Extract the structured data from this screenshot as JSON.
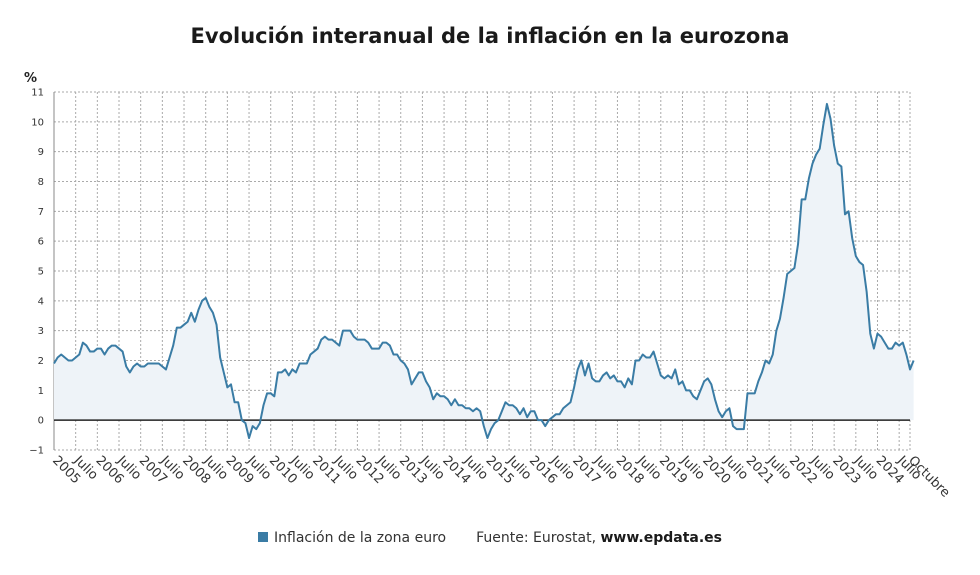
{
  "title": "Evolución interanual de la inflación en la eurozona",
  "legend": {
    "series_label": "Inflación de la zona euro",
    "source_prefix": "Fuente: Eurostat, ",
    "source_site": "www.epdata.es"
  },
  "colors": {
    "line": "#3a7ca5",
    "fill": "#eef3f8",
    "grid": "#aaaaaa",
    "zero": "#222222"
  },
  "chart_data": {
    "type": "area",
    "title": "Evolución interanual de la inflación en la eurozona",
    "ylabel": "%",
    "ylim": [
      -1,
      11
    ],
    "yticks": [
      -1,
      0,
      1,
      2,
      3,
      4,
      5,
      6,
      7,
      8,
      9,
      10,
      11
    ],
    "xlim": [
      2005.0,
      2024.75
    ],
    "grid": true,
    "legend_position": "bottom",
    "x_tick_labels": [
      {
        "x": 2005.0,
        "label": "2005"
      },
      {
        "x": 2005.5,
        "label": "Julio"
      },
      {
        "x": 2006.0,
        "label": "2006"
      },
      {
        "x": 2006.5,
        "label": "Julio"
      },
      {
        "x": 2007.0,
        "label": "2007"
      },
      {
        "x": 2007.5,
        "label": "Julio"
      },
      {
        "x": 2008.0,
        "label": "2008"
      },
      {
        "x": 2008.5,
        "label": "Julio"
      },
      {
        "x": 2009.0,
        "label": "2009"
      },
      {
        "x": 2009.5,
        "label": "Julio"
      },
      {
        "x": 2010.0,
        "label": "2010"
      },
      {
        "x": 2010.5,
        "label": "Julio"
      },
      {
        "x": 2011.0,
        "label": "2011"
      },
      {
        "x": 2011.5,
        "label": "Julio"
      },
      {
        "x": 2012.0,
        "label": "2012"
      },
      {
        "x": 2012.5,
        "label": "Julio"
      },
      {
        "x": 2013.0,
        "label": "2013"
      },
      {
        "x": 2013.5,
        "label": "Julio"
      },
      {
        "x": 2014.0,
        "label": "2014"
      },
      {
        "x": 2014.5,
        "label": "Julio"
      },
      {
        "x": 2015.0,
        "label": "2015"
      },
      {
        "x": 2015.5,
        "label": "Julio"
      },
      {
        "x": 2016.0,
        "label": "2016"
      },
      {
        "x": 2016.5,
        "label": "Julio"
      },
      {
        "x": 2017.0,
        "label": "2017"
      },
      {
        "x": 2017.5,
        "label": "Julio"
      },
      {
        "x": 2018.0,
        "label": "2018"
      },
      {
        "x": 2018.5,
        "label": "Julio"
      },
      {
        "x": 2019.0,
        "label": "2019"
      },
      {
        "x": 2019.5,
        "label": "Julio"
      },
      {
        "x": 2020.0,
        "label": "2020"
      },
      {
        "x": 2020.5,
        "label": "Julio"
      },
      {
        "x": 2021.0,
        "label": "2021"
      },
      {
        "x": 2021.5,
        "label": "Julio"
      },
      {
        "x": 2022.0,
        "label": "2022"
      },
      {
        "x": 2022.5,
        "label": "Julio"
      },
      {
        "x": 2023.0,
        "label": "2023"
      },
      {
        "x": 2023.5,
        "label": "Julio"
      },
      {
        "x": 2024.0,
        "label": "2024"
      },
      {
        "x": 2024.5,
        "label": "Julio"
      },
      {
        "x": 2024.75,
        "label": "Octubre"
      }
    ],
    "series": [
      {
        "name": "Inflación de la zona euro",
        "start": "2005-01",
        "frequency": "monthly",
        "values": [
          1.9,
          2.1,
          2.2,
          2.1,
          2.0,
          2.0,
          2.1,
          2.2,
          2.6,
          2.5,
          2.3,
          2.3,
          2.4,
          2.4,
          2.2,
          2.4,
          2.5,
          2.5,
          2.4,
          2.3,
          1.8,
          1.6,
          1.8,
          1.9,
          1.8,
          1.8,
          1.9,
          1.9,
          1.9,
          1.9,
          1.8,
          1.7,
          2.1,
          2.5,
          3.1,
          3.1,
          3.2,
          3.3,
          3.6,
          3.3,
          3.7,
          4.0,
          4.1,
          3.8,
          3.6,
          3.2,
          2.1,
          1.6,
          1.1,
          1.2,
          0.6,
          0.6,
          0.0,
          -0.1,
          -0.6,
          -0.2,
          -0.3,
          -0.1,
          0.5,
          0.9,
          0.9,
          0.8,
          1.6,
          1.6,
          1.7,
          1.5,
          1.7,
          1.6,
          1.9,
          1.9,
          1.9,
          2.2,
          2.3,
          2.4,
          2.7,
          2.8,
          2.7,
          2.7,
          2.6,
          2.5,
          3.0,
          3.0,
          3.0,
          2.8,
          2.7,
          2.7,
          2.7,
          2.6,
          2.4,
          2.4,
          2.4,
          2.6,
          2.6,
          2.5,
          2.2,
          2.2,
          2.0,
          1.9,
          1.7,
          1.2,
          1.4,
          1.6,
          1.6,
          1.3,
          1.1,
          0.7,
          0.9,
          0.8,
          0.8,
          0.7,
          0.5,
          0.7,
          0.5,
          0.5,
          0.4,
          0.4,
          0.3,
          0.4,
          0.3,
          -0.2,
          -0.6,
          -0.3,
          -0.1,
          0.0,
          0.3,
          0.6,
          0.5,
          0.5,
          0.4,
          0.2,
          0.4,
          0.1,
          0.3,
          0.3,
          0.0,
          0.0,
          -0.2,
          0.0,
          0.1,
          0.2,
          0.2,
          0.4,
          0.5,
          0.6,
          1.1,
          1.7,
          2.0,
          1.5,
          1.9,
          1.4,
          1.3,
          1.3,
          1.5,
          1.6,
          1.4,
          1.5,
          1.3,
          1.3,
          1.1,
          1.4,
          1.2,
          2.0,
          2.0,
          2.2,
          2.1,
          2.1,
          2.3,
          1.9,
          1.5,
          1.4,
          1.5,
          1.4,
          1.7,
          1.2,
          1.3,
          1.0,
          1.0,
          0.8,
          0.7,
          1.0,
          1.3,
          1.4,
          1.2,
          0.7,
          0.3,
          0.1,
          0.3,
          0.4,
          -0.2,
          -0.3,
          -0.3,
          -0.3,
          0.9,
          0.9,
          0.9,
          1.3,
          1.6,
          2.0,
          1.9,
          2.2,
          3.0,
          3.4,
          4.1,
          4.9,
          5.0,
          5.1,
          5.9,
          7.4,
          7.4,
          8.1,
          8.6,
          8.9,
          9.1,
          9.9,
          10.6,
          10.1,
          9.2,
          8.6,
          8.5,
          6.9,
          7.0,
          6.1,
          5.5,
          5.3,
          5.2,
          4.3,
          2.9,
          2.4,
          2.9,
          2.8,
          2.6,
          2.4,
          2.4,
          2.6,
          2.5,
          2.6,
          2.2,
          1.7,
          2.0
        ]
      }
    ]
  }
}
